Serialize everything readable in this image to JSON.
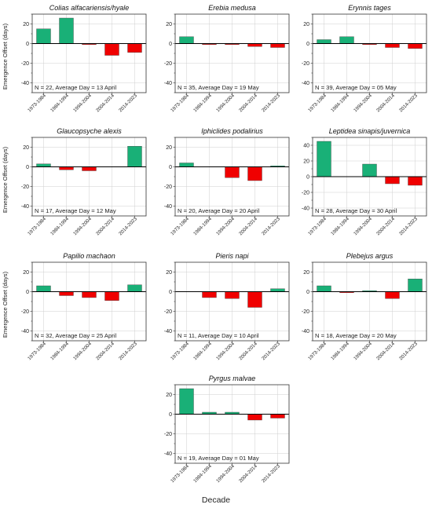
{
  "figure": {
    "ylabel": "Emergence Offset (days)",
    "xlabel": "Decade"
  },
  "colors": {
    "positive": "#19b077",
    "negative": "#f00000"
  },
  "chart_data": [
    {
      "type": "bar",
      "title": "Colias alfacariensis/hyale",
      "annotation": "N = 22, Average Day = 13 April",
      "categories": [
        "1973-1984",
        "1984-1994",
        "1994-2004",
        "2004-2014",
        "2014-2023"
      ],
      "values": [
        15,
        26,
        -1,
        -12,
        -9
      ],
      "ylim": [
        -50,
        30
      ],
      "yticks": [
        -40,
        -20,
        0,
        20
      ],
      "ylabel_shown": true
    },
    {
      "type": "bar",
      "title": "Erebia medusa",
      "annotation": "N = 35, Average Day = 19 May",
      "categories": [
        "1973-1984",
        "1984-1994",
        "1994-2004",
        "2004-2014",
        "2014-2023"
      ],
      "values": [
        7,
        -1,
        -1,
        -3,
        -4
      ],
      "ylim": [
        -50,
        30
      ],
      "yticks": [
        -40,
        -20,
        0,
        20
      ],
      "ylabel_shown": false
    },
    {
      "type": "bar",
      "title": "Erynnis tages",
      "annotation": "N = 39, Average Day = 05 May",
      "categories": [
        "1973-1984",
        "1984-1994",
        "1994-2004",
        "2004-2014",
        "2014-2023"
      ],
      "values": [
        4,
        7,
        -1,
        -4,
        -5
      ],
      "ylim": [
        -50,
        30
      ],
      "yticks": [
        -40,
        -20,
        0,
        20
      ],
      "ylabel_shown": false
    },
    {
      "type": "bar",
      "title": "Glaucopsyche alexis",
      "annotation": "N = 17, Average Day = 12 May",
      "categories": [
        "1973-1984",
        "1984-1994",
        "1994-2004",
        "2004-2014",
        "2014-2023"
      ],
      "values": [
        3,
        -3,
        -4,
        0,
        21
      ],
      "ylim": [
        -50,
        30
      ],
      "yticks": [
        -40,
        -20,
        0,
        20
      ],
      "ylabel_shown": true
    },
    {
      "type": "bar",
      "title": "Iphiclides podalirius",
      "annotation": "N = 20, Average Day = 20 April",
      "categories": [
        "1973-1984",
        "1984-1994",
        "1994-2004",
        "2004-2014",
        "2014-2023"
      ],
      "values": [
        4,
        0,
        -11,
        -14,
        1
      ],
      "ylim": [
        -50,
        30
      ],
      "yticks": [
        -40,
        -20,
        0,
        20
      ],
      "ylabel_shown": false
    },
    {
      "type": "bar",
      "title": "Leptidea sinapis/juvernica",
      "annotation": "N = 28, Average Day = 30 April",
      "categories": [
        "1973-1984",
        "1984-1994",
        "1994-2004",
        "2004-2014",
        "2014-2023"
      ],
      "values": [
        45,
        0,
        16,
        -9,
        -11
      ],
      "ylim": [
        -50,
        50
      ],
      "yticks": [
        -40,
        -20,
        0,
        20,
        40
      ],
      "ylabel_shown": false
    },
    {
      "type": "bar",
      "title": "Papilio machaon",
      "annotation": "N = 32, Average Day = 25 April",
      "categories": [
        "1973-1984",
        "1984-1994",
        "1994-2004",
        "2004-2014",
        "2014-2023"
      ],
      "values": [
        6,
        -4,
        -6,
        -9,
        7
      ],
      "ylim": [
        -50,
        30
      ],
      "yticks": [
        -40,
        -20,
        0,
        20
      ],
      "ylabel_shown": true
    },
    {
      "type": "bar",
      "title": "Pieris napi",
      "annotation": "N = 11, Average Day = 10 April",
      "categories": [
        "1973-1984",
        "1984-1994",
        "1994-2004",
        "2004-2014",
        "2014-2023"
      ],
      "values": [
        0,
        -6,
        -7,
        -16,
        3
      ],
      "ylim": [
        -50,
        30
      ],
      "yticks": [
        -40,
        -20,
        0,
        20
      ],
      "ylabel_shown": false
    },
    {
      "type": "bar",
      "title": "Plebejus argus",
      "annotation": "N = 18, Average Day = 20 May",
      "categories": [
        "1973-1984",
        "1984-1994",
        "1994-2004",
        "2004-2014",
        "2014-2023"
      ],
      "values": [
        6,
        -1,
        1,
        -7,
        13
      ],
      "ylim": [
        -50,
        30
      ],
      "yticks": [
        -40,
        -20,
        0,
        20
      ],
      "ylabel_shown": false
    },
    {
      "type": "bar",
      "title": "Pyrgus malvae",
      "annotation": "N = 19, Average Day = 01 May",
      "categories": [
        "1973-1984",
        "1984-1994",
        "1994-2004",
        "2004-2014",
        "2014-2023"
      ],
      "values": [
        26,
        2,
        2,
        -6,
        -4
      ],
      "ylim": [
        -50,
        30
      ],
      "yticks": [
        -40,
        -20,
        0,
        20
      ],
      "ylabel_shown": false
    }
  ]
}
